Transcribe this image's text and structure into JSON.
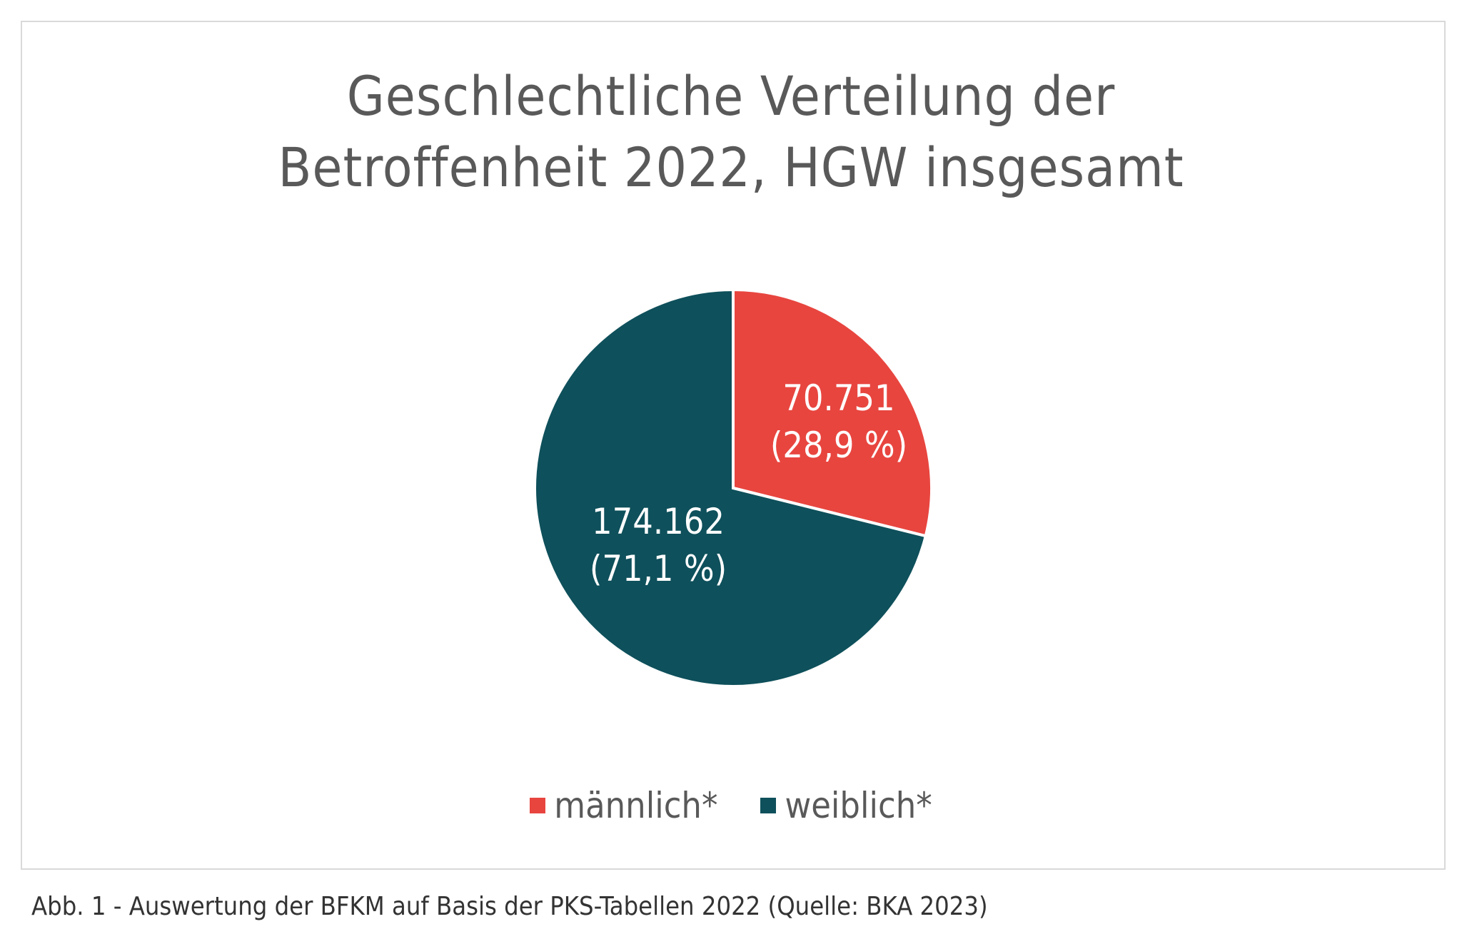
{
  "chart_data": {
    "type": "pie",
    "title_lines": [
      "Geschlechtliche Verteilung der",
      "Betroffenheit 2022, HGW insgesamt"
    ],
    "slices": [
      {
        "name": "männlich*",
        "value": 70751,
        "value_label": "70.751",
        "percent_label": "(28,9 %)",
        "color": "#E8453F"
      },
      {
        "name": "weiblich*",
        "value": 174162,
        "value_label": "174.162",
        "percent_label": "(71,1 %)",
        "color": "#0E505B"
      }
    ],
    "legend_position": "bottom",
    "start_angle": "12 o'clock, clockwise"
  },
  "caption": "Abb. 1 - Auswertung der BFKM auf Basis der PKS-Tabellen 2022 (Quelle: BKA 2023)"
}
